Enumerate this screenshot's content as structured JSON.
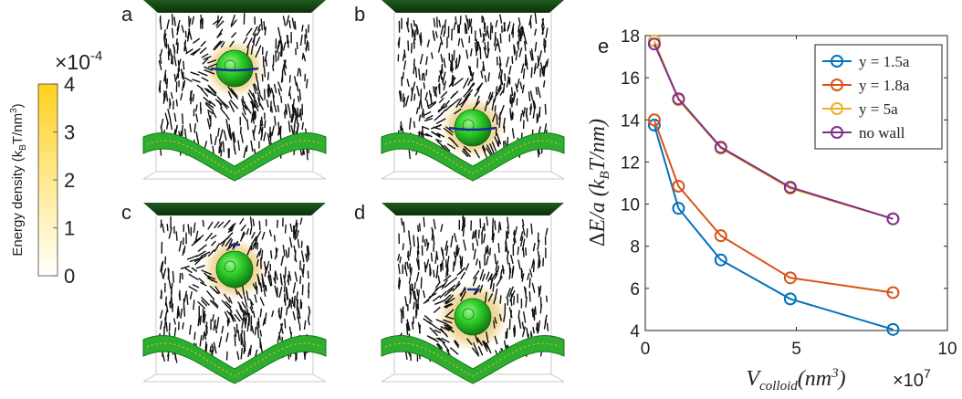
{
  "panels": [
    {
      "label": "a"
    },
    {
      "label": "b"
    },
    {
      "label": "c"
    },
    {
      "label": "d"
    }
  ],
  "colorbar": {
    "label_main": "Energy density (k",
    "label_sub": "B",
    "label_end": "T/nm",
    "label_sup": "3",
    "label_close": ")",
    "exponent_base": "×10",
    "exponent_power": "-4",
    "ticks": [
      "0",
      "1",
      "2",
      "3",
      "4"
    ],
    "range": [
      0,
      4
    ],
    "colors": [
      "#ffffff",
      "#ffd21f"
    ]
  },
  "chart_panel_label": "e",
  "chart_data": {
    "type": "line",
    "x": [
      0.3,
      1.1,
      2.5,
      4.8,
      8.2
    ],
    "xlabel": "V_colloid(nm^3)",
    "ylabel": "ΔE/a (k_BT/nm)",
    "x_multiplier": "×10",
    "x_multiplier_power": "7",
    "xlim": [
      0,
      10
    ],
    "ylim": [
      4,
      18
    ],
    "xticks": [
      "0",
      "5",
      "10"
    ],
    "yticks": [
      "4",
      "6",
      "8",
      "10",
      "12",
      "14",
      "16",
      "18"
    ],
    "legend_position": "top-right",
    "grid": false,
    "series": [
      {
        "name": "y = 1.5a",
        "color": "#0072bd",
        "values": [
          13.75,
          9.8,
          7.35,
          5.5,
          4.05
        ]
      },
      {
        "name": "y = 1.8a",
        "color": "#d95319",
        "values": [
          14.0,
          10.85,
          8.5,
          6.5,
          5.8
        ]
      },
      {
        "name": "y = 5a",
        "color": "#edb120",
        "values": [
          17.75,
          14.95,
          12.65,
          10.75,
          9.3
        ]
      },
      {
        "name": "no wall",
        "color": "#7e2f8e",
        "values": [
          17.6,
          15.0,
          12.7,
          10.8,
          9.3
        ]
      }
    ]
  }
}
